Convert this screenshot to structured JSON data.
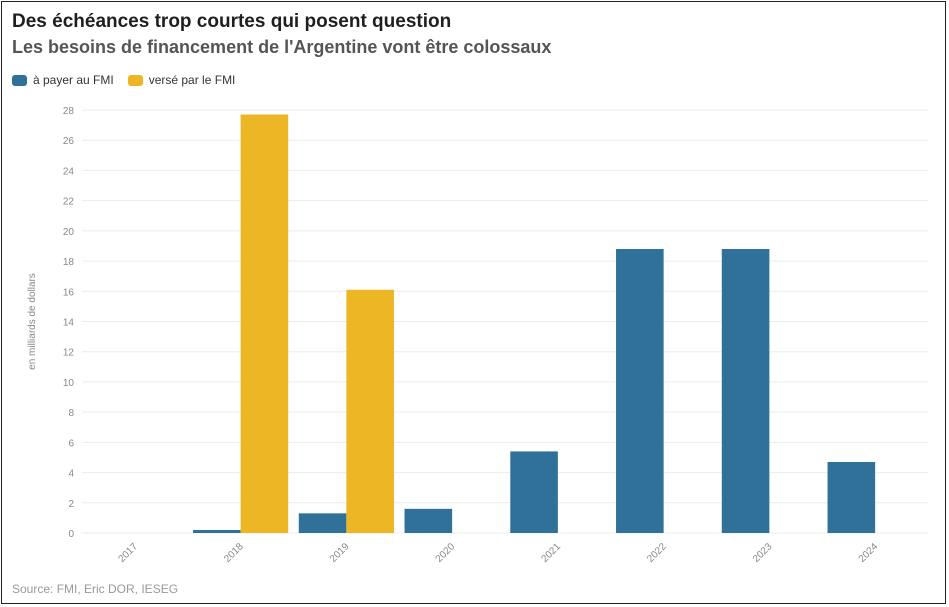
{
  "title": "Des échéances trop courtes qui posent question",
  "subtitle": "Les besoins de financement de l'Argentine vont être colossaux",
  "source": "Source: FMI, Eric DOR, IESEG",
  "colors": {
    "series1": "#2f7199",
    "series2": "#ecb624",
    "grid": "#ececec",
    "tick": "#888888"
  },
  "chart_data": {
    "type": "bar",
    "ylabel": "en milliards de dollars",
    "ylim": [
      0,
      28
    ],
    "yticks": [
      0,
      2,
      4,
      6,
      8,
      10,
      12,
      14,
      16,
      18,
      20,
      22,
      24,
      26,
      28
    ],
    "categories": [
      "2017",
      "2018",
      "2019",
      "2020",
      "2021",
      "2022",
      "2023",
      "2024"
    ],
    "series": [
      {
        "name": "à payer au FMI",
        "values": [
          0,
          0.2,
          1.3,
          1.6,
          5.4,
          18.8,
          18.8,
          4.7
        ]
      },
      {
        "name": "versé par le FMI",
        "values": [
          0,
          27.7,
          16.1,
          0,
          0,
          0,
          0,
          0
        ]
      }
    ],
    "legend": "top-left",
    "grid": true
  }
}
